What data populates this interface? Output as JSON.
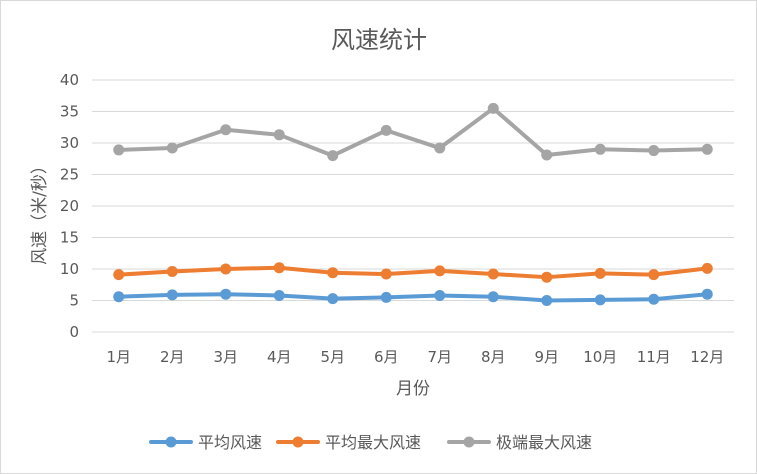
{
  "chart_data": {
    "type": "line",
    "title": "风速统计",
    "xlabel": "月份",
    "ylabel": "风速（米/秒）",
    "ylim": [
      0,
      40
    ],
    "yticks": [
      0,
      5,
      10,
      15,
      20,
      25,
      30,
      35,
      40
    ],
    "grid": true,
    "legend_position": "bottom",
    "categories": [
      "1月",
      "2月",
      "3月",
      "4月",
      "5月",
      "6月",
      "7月",
      "8月",
      "9月",
      "10月",
      "11月",
      "12月"
    ],
    "series": [
      {
        "name": "平均风速",
        "color": "#5b9bd5",
        "values": [
          5.6,
          5.9,
          6.0,
          5.8,
          5.3,
          5.5,
          5.8,
          5.6,
          5.0,
          5.1,
          5.2,
          6.0
        ]
      },
      {
        "name": "平均最大风速",
        "color": "#ed7d31",
        "values": [
          9.1,
          9.6,
          10.0,
          10.2,
          9.4,
          9.2,
          9.7,
          9.2,
          8.7,
          9.3,
          9.1,
          10.1
        ]
      },
      {
        "name": "极端最大风速",
        "color": "#a5a5a5",
        "values": [
          28.9,
          29.2,
          32.1,
          31.3,
          28.0,
          32.0,
          29.2,
          35.5,
          28.1,
          29.0,
          28.8,
          29.0
        ]
      }
    ]
  }
}
